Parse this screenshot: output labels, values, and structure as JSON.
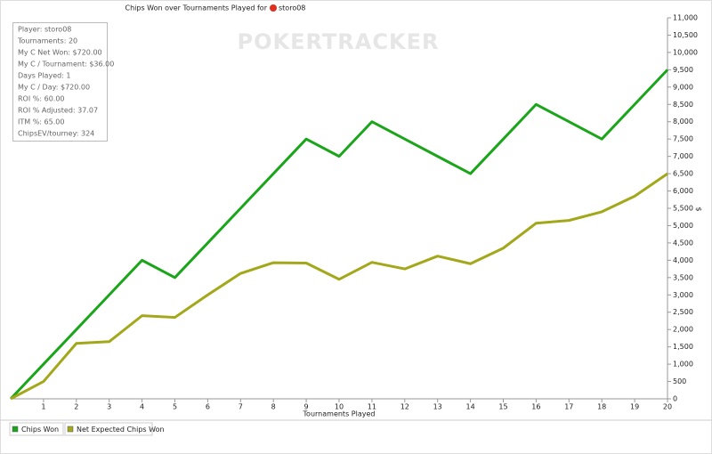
{
  "chart_data": {
    "type": "line",
    "title": "Chips Won over Tournaments Played for",
    "player": "storo08",
    "watermark": "POKERTRACKER",
    "x_label": "Tournaments Played",
    "y_label": "$",
    "info_box": [
      "Player: storo08",
      "Tournaments: 20",
      "My C Net Won: $720.00",
      "My C / Tournament: $36.00",
      "Days Played: 1",
      "My C / Day: $720.00",
      "ROI %: 60.00",
      "ROI % Adjusted: 37.07",
      "ITM %: 65.00",
      "ChipsEV/tourney: 324"
    ],
    "x": [
      0,
      1,
      2,
      3,
      4,
      5,
      6,
      7,
      8,
      9,
      10,
      11,
      12,
      13,
      14,
      15,
      16,
      17,
      18,
      19,
      20
    ],
    "series": [
      {
        "name": "Chips Won",
        "color": "#1ba51b",
        "values": [
          0,
          1000,
          2000,
          3000,
          4000,
          3500,
          4500,
          5500,
          6500,
          7500,
          7000,
          8000,
          7500,
          7000,
          6500,
          7500,
          8500,
          8000,
          7500,
          8500,
          9500
        ]
      },
      {
        "name": "Net Expected Chips Won",
        "color": "#a3a81a",
        "values": [
          0,
          500,
          1600,
          1650,
          2400,
          2350,
          3000,
          3620,
          3930,
          3920,
          3450,
          3940,
          3750,
          4120,
          3900,
          4350,
          5070,
          5150,
          5400,
          5850,
          6500
        ]
      }
    ],
    "xlim": [
      0,
      20
    ],
    "xticks": [
      1,
      2,
      3,
      4,
      5,
      6,
      7,
      8,
      9,
      10,
      11,
      12,
      13,
      14,
      15,
      16,
      17,
      18,
      19,
      20
    ],
    "ylim": [
      0,
      11000
    ],
    "yticks": [
      0,
      500,
      {
        "value": 1000,
        "label": "1,000"
      },
      {
        "value": 1500,
        "label": "1,500"
      },
      {
        "value": 2000,
        "label": "2,000"
      },
      {
        "value": 2500,
        "label": "2,500"
      },
      {
        "value": 3000,
        "label": "3,000"
      },
      {
        "value": 3500,
        "label": "3,500"
      },
      {
        "value": 4000,
        "label": "4,000"
      },
      {
        "value": 4500,
        "label": "4,500"
      },
      {
        "value": 5000,
        "label": "5,000"
      },
      {
        "value": 5500,
        "label": "5,500"
      },
      {
        "value": 6000,
        "label": "6,000"
      },
      {
        "value": 6500,
        "label": "6,500"
      },
      {
        "value": 7000,
        "label": "7,000"
      },
      {
        "value": 7500,
        "label": "7,500"
      },
      {
        "value": 8000,
        "label": "8,000"
      },
      {
        "value": 8500,
        "label": "8,500"
      },
      {
        "value": 9000,
        "label": "9,000"
      },
      {
        "value": 9500,
        "label": "9,500"
      },
      {
        "value": 10000,
        "label": "10,000"
      },
      {
        "value": 10500,
        "label": "10,500"
      },
      {
        "value": 11000,
        "label": "11,000"
      }
    ],
    "grid": false
  }
}
